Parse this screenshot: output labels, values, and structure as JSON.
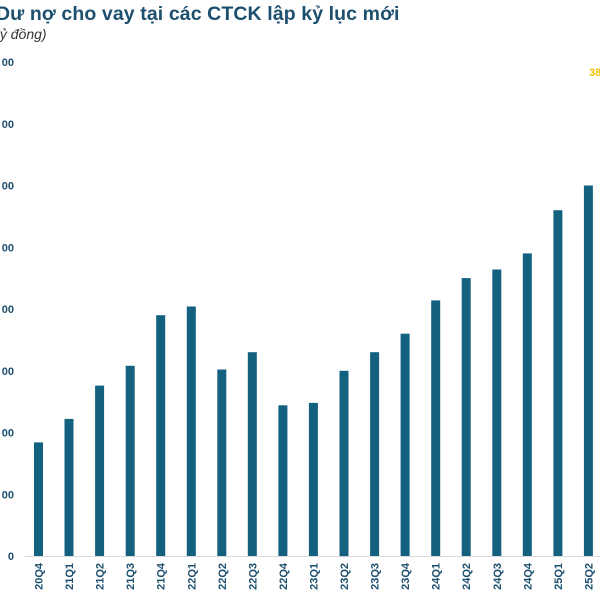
{
  "title_prefix_hidden": "",
  "chart_data": {
    "type": "bar",
    "title": "Dư nợ cho vay tại các CTCK lập kỷ lục mới",
    "subtitle": "tỷ đồng)",
    "xlabel": "",
    "ylabel": "",
    "ylim": [
      0,
      400000
    ],
    "yticks": [
      0,
      50000,
      100000,
      150000,
      200000,
      250000,
      300000,
      350000,
      400000
    ],
    "ytick_labels_visible": [
      "0",
      "00",
      "00",
      "00",
      "00",
      "00",
      "00",
      "00",
      "00"
    ],
    "grid": false,
    "categories": [
      "20Q4",
      "21Q1",
      "21Q2",
      "21Q3",
      "21Q4",
      "22Q1",
      "22Q2",
      "22Q3",
      "22Q4",
      "23Q1",
      "23Q2",
      "23Q3",
      "23Q4",
      "24Q1",
      "24Q2",
      "24Q3",
      "24Q4",
      "25Q1",
      "25Q2"
    ],
    "series": [
      {
        "name": "Dư nợ cho vay",
        "color": "#13607f",
        "values": [
          92000,
          111000,
          138000,
          154000,
          195000,
          202000,
          151000,
          165000,
          122000,
          124000,
          150000,
          165000,
          180000,
          207000,
          225000,
          232000,
          245000,
          280000,
          300000
        ]
      }
    ],
    "annotations": [
      {
        "text": "38",
        "color": "#f2c200",
        "position": "top-right"
      }
    ]
  },
  "colors": {
    "title": "#1d4f6e",
    "bar": "#13607f",
    "axis": "#d9d9d9",
    "annotation": "#f2c200"
  }
}
